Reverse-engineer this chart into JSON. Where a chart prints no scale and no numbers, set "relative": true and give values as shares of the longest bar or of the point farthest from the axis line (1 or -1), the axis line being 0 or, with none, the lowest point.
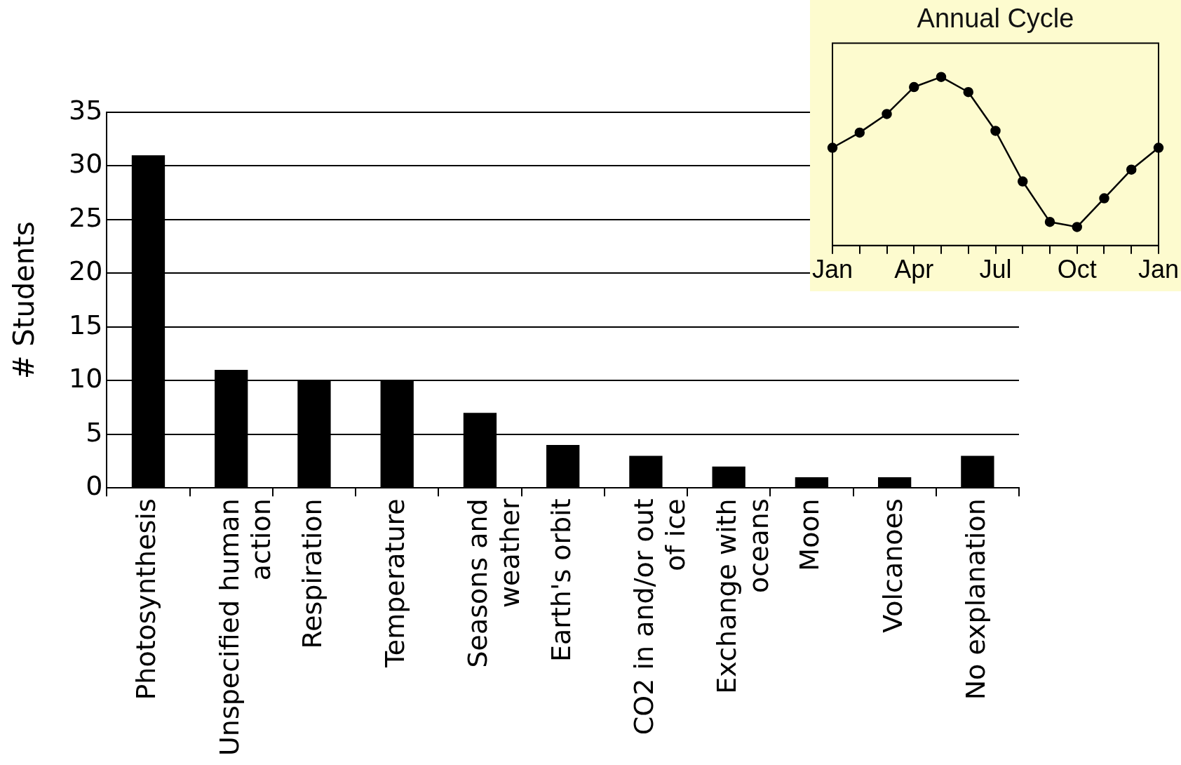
{
  "chart_data": [
    {
      "type": "bar",
      "ylabel": "# Students",
      "categories": [
        "Photosynthesis",
        "Unspecified human action",
        "Respiration",
        "Temperature",
        "Seasons and weather",
        "Earth's orbit",
        "CO2 in and/or out of ice",
        "Exchange with oceans",
        "Moon",
        "Volcanoes",
        "No explanation"
      ],
      "values": [
        31,
        11,
        10,
        10,
        7,
        4,
        3,
        2,
        1,
        1,
        3
      ],
      "color": "#000000",
      "ylim": [
        0,
        35
      ],
      "yticks": [
        0,
        5,
        10,
        15,
        20,
        25,
        30,
        35
      ],
      "grid": "y"
    },
    {
      "type": "line",
      "title": "Annual Cycle",
      "categories": [
        "Jan",
        null,
        null,
        "Apr",
        null,
        null,
        "Jul",
        null,
        null,
        "Oct",
        null,
        null,
        "Jan"
      ],
      "values": [
        0.58,
        0.67,
        0.78,
        0.94,
        1,
        0.91,
        0.68,
        0.38,
        0.14,
        0.11,
        0.28,
        0.45,
        0.58
      ],
      "color": "#000000",
      "relative": true,
      "marker": "circle"
    }
  ]
}
